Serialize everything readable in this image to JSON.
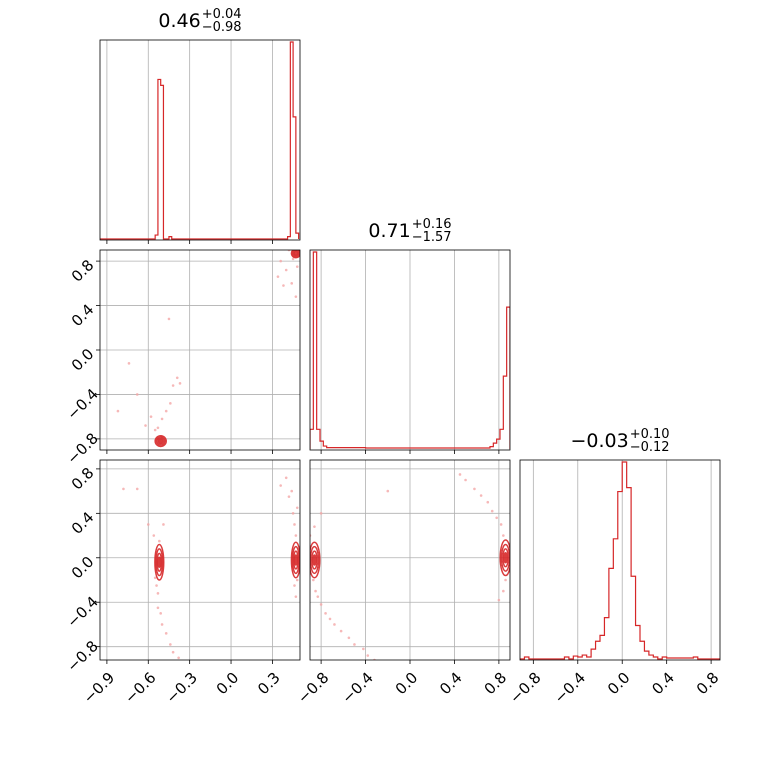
{
  "colors": {
    "line": "#d62728",
    "grid": "#b0b0b0",
    "axis": "#000000",
    "scatter": "#f4a6a6"
  },
  "titles": [
    {
      "value": "0.46",
      "plus": "+0.04",
      "minus": "−0.98"
    },
    {
      "value": "0.71",
      "plus": "+0.16",
      "minus": "−1.57"
    },
    {
      "value": "−0.03",
      "plus": "+0.10",
      "minus": "−0.12"
    }
  ],
  "chart_data": {
    "type": "corner",
    "parameters": 3,
    "param_ranges": [
      [
        -0.95,
        0.5
      ],
      [
        -0.9,
        0.9
      ],
      [
        -0.92,
        0.88
      ]
    ],
    "ticks": [
      {
        "values": [
          -0.9,
          -0.6,
          -0.3,
          0.0,
          0.3
        ],
        "labels": [
          "−0.9",
          "−0.6",
          "−0.3",
          "0.0",
          "0.3"
        ]
      },
      {
        "values": [
          -0.8,
          -0.4,
          0.0,
          0.4,
          0.8
        ],
        "labels": [
          "−0.8",
          "−0.4",
          "0.0",
          "0.4",
          "0.8"
        ]
      },
      {
        "values": [
          -0.8,
          -0.4,
          0.0,
          0.4,
          0.8
        ],
        "labels": [
          "−0.8",
          "−0.4",
          "0.0",
          "0.4",
          "0.8"
        ]
      }
    ],
    "grid": true,
    "histograms": [
      {
        "param": 0,
        "bins": [
          {
            "x0": -0.95,
            "x1": -0.55,
            "h": 0.0
          },
          {
            "x0": -0.55,
            "x1": -0.53,
            "h": 0.02
          },
          {
            "x0": -0.53,
            "x1": -0.51,
            "h": 0.81
          },
          {
            "x0": -0.51,
            "x1": -0.49,
            "h": 0.78
          },
          {
            "x0": -0.49,
            "x1": -0.45,
            "h": 0.0
          },
          {
            "x0": -0.45,
            "x1": -0.43,
            "h": 0.012
          },
          {
            "x0": -0.43,
            "x1": 0.41,
            "h": 0.0
          },
          {
            "x0": 0.41,
            "x1": 0.43,
            "h": 0.012
          },
          {
            "x0": 0.43,
            "x1": 0.45,
            "h": 1.0
          },
          {
            "x0": 0.45,
            "x1": 0.47,
            "h": 0.62
          },
          {
            "x0": 0.47,
            "x1": 0.49,
            "h": 0.03
          }
        ]
      },
      {
        "param": 1,
        "bins": [
          {
            "x0": -0.9,
            "x1": -0.87,
            "h": 0.1
          },
          {
            "x0": -0.87,
            "x1": -0.84,
            "h": 1.0
          },
          {
            "x0": -0.84,
            "x1": -0.81,
            "h": 0.1
          },
          {
            "x0": -0.81,
            "x1": -0.78,
            "h": 0.04
          },
          {
            "x0": -0.78,
            "x1": -0.75,
            "h": 0.015
          },
          {
            "x0": -0.75,
            "x1": -0.4,
            "h": 0.007
          },
          {
            "x0": -0.4,
            "x1": -0.37,
            "h": 0.005
          },
          {
            "x0": -0.37,
            "x1": 0.72,
            "h": 0.005
          },
          {
            "x0": 0.72,
            "x1": 0.75,
            "h": 0.012
          },
          {
            "x0": 0.75,
            "x1": 0.78,
            "h": 0.03
          },
          {
            "x0": 0.78,
            "x1": 0.81,
            "h": 0.05
          },
          {
            "x0": 0.81,
            "x1": 0.84,
            "h": 0.1
          },
          {
            "x0": 0.84,
            "x1": 0.87,
            "h": 0.37
          },
          {
            "x0": 0.87,
            "x1": 0.9,
            "h": 0.72
          }
        ]
      },
      {
        "param": 2,
        "bins": [
          {
            "x0": -0.92,
            "x1": -0.88,
            "h": 0.0
          },
          {
            "x0": -0.88,
            "x1": -0.84,
            "h": 0.01
          },
          {
            "x0": -0.84,
            "x1": -0.52,
            "h": 0.0
          },
          {
            "x0": -0.52,
            "x1": -0.48,
            "h": 0.01
          },
          {
            "x0": -0.48,
            "x1": -0.44,
            "h": 0.0
          },
          {
            "x0": -0.44,
            "x1": -0.4,
            "h": 0.015
          },
          {
            "x0": -0.4,
            "x1": -0.36,
            "h": 0.01
          },
          {
            "x0": -0.36,
            "x1": -0.32,
            "h": 0.02
          },
          {
            "x0": -0.32,
            "x1": -0.28,
            "h": 0.01
          },
          {
            "x0": -0.28,
            "x1": -0.24,
            "h": 0.05
          },
          {
            "x0": -0.24,
            "x1": -0.2,
            "h": 0.09
          },
          {
            "x0": -0.2,
            "x1": -0.16,
            "h": 0.12
          },
          {
            "x0": -0.16,
            "x1": -0.12,
            "h": 0.21
          },
          {
            "x0": -0.12,
            "x1": -0.08,
            "h": 0.46
          },
          {
            "x0": -0.08,
            "x1": -0.04,
            "h": 0.61
          },
          {
            "x0": -0.04,
            "x1": 0.0,
            "h": 0.85
          },
          {
            "x0": 0.0,
            "x1": 0.04,
            "h": 1.0
          },
          {
            "x0": 0.04,
            "x1": 0.08,
            "h": 0.87
          },
          {
            "x0": 0.08,
            "x1": 0.12,
            "h": 0.42
          },
          {
            "x0": 0.12,
            "x1": 0.16,
            "h": 0.17
          },
          {
            "x0": 0.16,
            "x1": 0.2,
            "h": 0.09
          },
          {
            "x0": 0.2,
            "x1": 0.24,
            "h": 0.04
          },
          {
            "x0": 0.24,
            "x1": 0.28,
            "h": 0.02
          },
          {
            "x0": 0.28,
            "x1": 0.32,
            "h": 0.01
          },
          {
            "x0": 0.32,
            "x1": 0.36,
            "h": 0.0
          },
          {
            "x0": 0.36,
            "x1": 0.4,
            "h": 0.01
          },
          {
            "x0": 0.4,
            "x1": 0.64,
            "h": 0.005
          },
          {
            "x0": 0.64,
            "x1": 0.68,
            "h": 0.01
          },
          {
            "x0": 0.68,
            "x1": 0.88,
            "h": 0.0
          }
        ]
      }
    ],
    "contours": [
      {
        "pair": [
          0,
          1
        ],
        "clusters": [
          {
            "cx": -0.51,
            "cy": -0.82,
            "rx": 0.025,
            "ry": 0.03
          },
          {
            "cx": 0.47,
            "cy": 0.87,
            "rx": 0.02,
            "ry": 0.025
          }
        ]
      },
      {
        "pair": [
          0,
          2
        ],
        "clusters": [
          {
            "cx": -0.52,
            "cy": -0.04,
            "rx": 0.02,
            "ry": 0.1
          },
          {
            "cx": 0.47,
            "cy": -0.02,
            "rx": 0.02,
            "ry": 0.1
          }
        ]
      },
      {
        "pair": [
          1,
          2
        ],
        "clusters": [
          {
            "cx": -0.86,
            "cy": -0.02,
            "rx": 0.03,
            "ry": 0.1
          },
          {
            "cx": 0.86,
            "cy": 0.0,
            "rx": 0.03,
            "ry": 0.1
          }
        ]
      }
    ],
    "scatter": [
      {
        "pair": [
          0,
          1
        ],
        "points": [
          [
            -0.82,
            -0.55
          ],
          [
            -0.74,
            -0.12
          ],
          [
            -0.68,
            -0.4
          ],
          [
            -0.62,
            -0.68
          ],
          [
            -0.58,
            -0.6
          ],
          [
            -0.55,
            -0.72
          ],
          [
            -0.53,
            -0.7
          ],
          [
            -0.5,
            -0.62
          ],
          [
            -0.47,
            -0.55
          ],
          [
            -0.44,
            -0.48
          ],
          [
            -0.42,
            -0.32
          ],
          [
            -0.39,
            -0.25
          ],
          [
            -0.37,
            -0.3
          ],
          [
            -0.45,
            0.28
          ],
          [
            -0.53,
            -0.8
          ],
          [
            -0.5,
            -0.78
          ],
          [
            0.34,
            0.66
          ],
          [
            0.36,
            0.8
          ],
          [
            0.38,
            0.58
          ],
          [
            0.4,
            0.72
          ],
          [
            0.42,
            0.9
          ],
          [
            0.45,
            0.82
          ],
          [
            0.44,
            0.6
          ],
          [
            0.48,
            0.75
          ],
          [
            0.47,
            0.48
          ]
        ]
      },
      {
        "pair": [
          0,
          2
        ],
        "points": [
          [
            -0.78,
            0.62
          ],
          [
            -0.68,
            0.62
          ],
          [
            -0.6,
            0.3
          ],
          [
            -0.56,
            0.2
          ],
          [
            -0.55,
            -0.18
          ],
          [
            -0.54,
            -0.25
          ],
          [
            -0.53,
            -0.32
          ],
          [
            -0.53,
            -0.45
          ],
          [
            -0.51,
            -0.5
          ],
          [
            -0.5,
            -0.6
          ],
          [
            -0.47,
            -0.68
          ],
          [
            -0.44,
            -0.78
          ],
          [
            -0.42,
            -0.85
          ],
          [
            -0.38,
            -0.9
          ],
          [
            -0.52,
            0.15
          ],
          [
            -0.49,
            0.3
          ],
          [
            0.36,
            0.65
          ],
          [
            0.4,
            0.72
          ],
          [
            0.42,
            0.55
          ],
          [
            0.45,
            0.4
          ],
          [
            0.46,
            0.3
          ],
          [
            0.48,
            0.45
          ],
          [
            0.47,
            0.2
          ],
          [
            0.46,
            -0.25
          ],
          [
            0.47,
            -0.35
          ],
          [
            0.48,
            -0.2
          ],
          [
            0.44,
            0.6
          ]
        ]
      },
      {
        "pair": [
          1,
          2
        ],
        "points": [
          [
            -0.9,
            0.2
          ],
          [
            -0.87,
            -0.2
          ],
          [
            -0.85,
            -0.3
          ],
          [
            -0.83,
            -0.35
          ],
          [
            -0.8,
            -0.42
          ],
          [
            -0.76,
            -0.5
          ],
          [
            -0.72,
            -0.55
          ],
          [
            -0.68,
            -0.6
          ],
          [
            -0.62,
            -0.66
          ],
          [
            -0.55,
            -0.72
          ],
          [
            -0.5,
            -0.78
          ],
          [
            -0.42,
            -0.82
          ],
          [
            -0.38,
            -0.88
          ],
          [
            -0.32,
            -0.92
          ],
          [
            -0.86,
            0.28
          ],
          [
            -0.8,
            0.4
          ],
          [
            -0.2,
            0.6
          ],
          [
            0.45,
            0.75
          ],
          [
            0.5,
            0.7
          ],
          [
            0.58,
            0.62
          ],
          [
            0.64,
            0.56
          ],
          [
            0.7,
            0.5
          ],
          [
            0.74,
            0.42
          ],
          [
            0.78,
            0.36
          ],
          [
            0.82,
            0.3
          ],
          [
            0.84,
            0.2
          ],
          [
            0.86,
            -0.2
          ],
          [
            0.84,
            -0.3
          ],
          [
            0.8,
            -0.38
          ]
        ]
      }
    ]
  }
}
